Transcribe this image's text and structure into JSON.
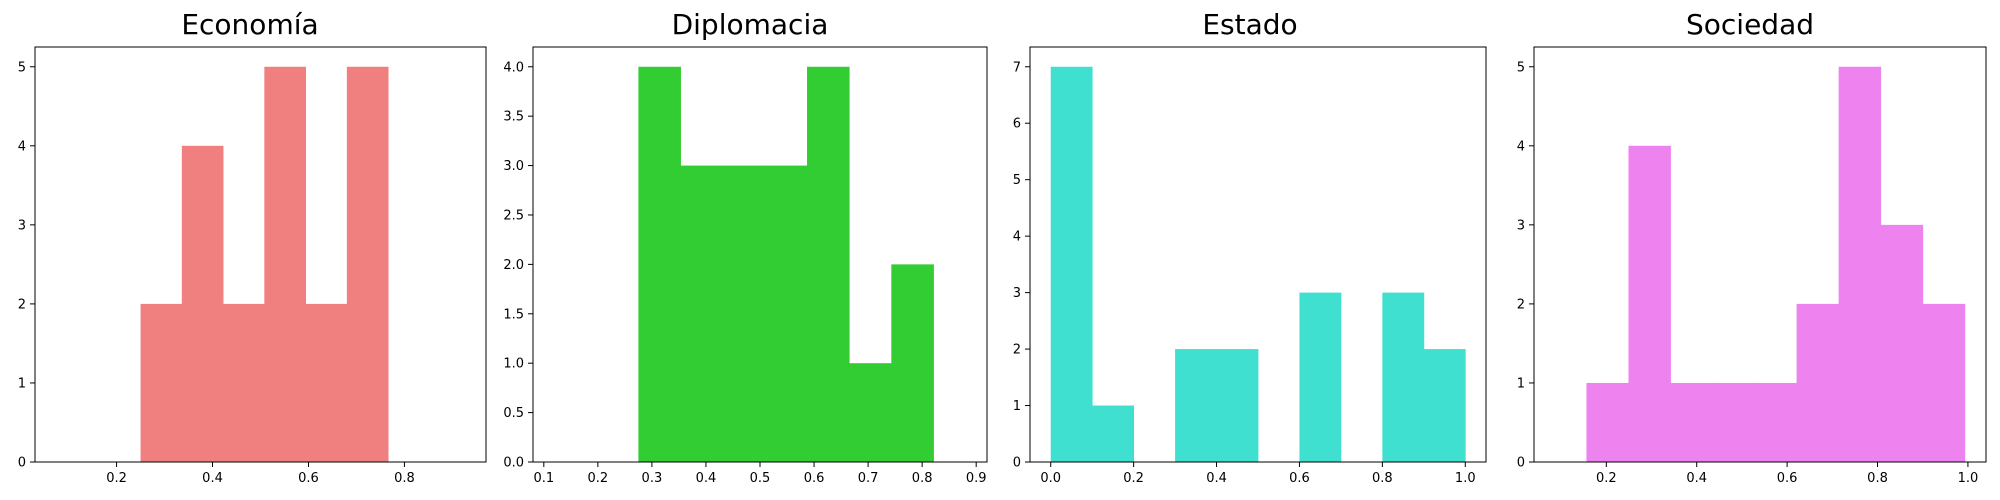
{
  "chart_data": [
    {
      "type": "bar",
      "title": "Economía",
      "color": "#f08080",
      "xlim": [
        0.03,
        0.97
      ],
      "ylim": [
        0,
        5.25
      ],
      "xticks": [
        "0.2",
        "0.4",
        "0.6",
        "0.8"
      ],
      "xtick_values": [
        0.2,
        0.4,
        0.6,
        0.8
      ],
      "yticks": [
        "0",
        "1",
        "2",
        "3",
        "4",
        "5"
      ],
      "ytick_values": [
        0,
        1,
        2,
        3,
        4,
        5
      ],
      "bins": [
        {
          "x0": 0.25,
          "x1": 0.336,
          "count": 2
        },
        {
          "x0": 0.336,
          "x1": 0.422,
          "count": 4
        },
        {
          "x0": 0.422,
          "x1": 0.508,
          "count": 2
        },
        {
          "x0": 0.508,
          "x1": 0.594,
          "count": 5
        },
        {
          "x0": 0.594,
          "x1": 0.68,
          "count": 2
        },
        {
          "x0": 0.68,
          "x1": 0.766,
          "count": 5
        }
      ]
    },
    {
      "type": "bar",
      "title": "Diplomacia",
      "color": "#32cd32",
      "xlim": [
        0.08,
        0.92
      ],
      "ylim": [
        0,
        4.2
      ],
      "xticks": [
        "0.1",
        "0.2",
        "0.3",
        "0.4",
        "0.5",
        "0.6",
        "0.7",
        "0.8",
        "0.9"
      ],
      "xtick_values": [
        0.1,
        0.2,
        0.3,
        0.4,
        0.5,
        0.6,
        0.7,
        0.8,
        0.9
      ],
      "yticks": [
        "0.0",
        "0.5",
        "1.0",
        "1.5",
        "2.0",
        "2.5",
        "3.0",
        "3.5",
        "4.0"
      ],
      "ytick_values": [
        0,
        0.5,
        1,
        1.5,
        2,
        2.5,
        3,
        3.5,
        4
      ],
      "bins": [
        {
          "x0": 0.275,
          "x1": 0.353,
          "count": 4
        },
        {
          "x0": 0.353,
          "x1": 0.431,
          "count": 3
        },
        {
          "x0": 0.431,
          "x1": 0.509,
          "count": 3
        },
        {
          "x0": 0.509,
          "x1": 0.587,
          "count": 3
        },
        {
          "x0": 0.587,
          "x1": 0.665,
          "count": 4
        },
        {
          "x0": 0.665,
          "x1": 0.743,
          "count": 1
        },
        {
          "x0": 0.743,
          "x1": 0.821,
          "count": 2
        }
      ]
    },
    {
      "type": "bar",
      "title": "Estado",
      "color": "#40e0d0",
      "xlim": [
        -0.05,
        1.05
      ],
      "ylim": [
        0,
        7.35
      ],
      "xticks": [
        "0.0",
        "0.2",
        "0.4",
        "0.6",
        "0.8",
        "1.0"
      ],
      "xtick_values": [
        0,
        0.2,
        0.4,
        0.6,
        0.8,
        1.0
      ],
      "yticks": [
        "0",
        "1",
        "2",
        "3",
        "4",
        "5",
        "6",
        "7"
      ],
      "ytick_values": [
        0,
        1,
        2,
        3,
        4,
        5,
        6,
        7
      ],
      "bins": [
        {
          "x0": 0.0,
          "x1": 0.1,
          "count": 7
        },
        {
          "x0": 0.1,
          "x1": 0.2,
          "count": 1
        },
        {
          "x0": 0.2,
          "x1": 0.3,
          "count": 0
        },
        {
          "x0": 0.3,
          "x1": 0.4,
          "count": 2
        },
        {
          "x0": 0.4,
          "x1": 0.5,
          "count": 2
        },
        {
          "x0": 0.5,
          "x1": 0.6,
          "count": 0
        },
        {
          "x0": 0.6,
          "x1": 0.7,
          "count": 3
        },
        {
          "x0": 0.7,
          "x1": 0.8,
          "count": 0
        },
        {
          "x0": 0.8,
          "x1": 0.9,
          "count": 3
        },
        {
          "x0": 0.9,
          "x1": 1.0,
          "count": 2
        }
      ]
    },
    {
      "type": "bar",
      "title": "Sociedad",
      "color": "#ee82ee",
      "xlim": [
        0.04,
        1.04
      ],
      "ylim": [
        0,
        5.25
      ],
      "xticks": [
        "0.2",
        "0.4",
        "0.6",
        "0.8",
        "1.0"
      ],
      "xtick_values": [
        0.2,
        0.4,
        0.6,
        0.8,
        1.0
      ],
      "yticks": [
        "0",
        "1",
        "2",
        "3",
        "4",
        "5"
      ],
      "ytick_values": [
        0,
        1,
        2,
        3,
        4,
        5
      ],
      "bins": [
        {
          "x0": 0.156,
          "x1": 0.249,
          "count": 1
        },
        {
          "x0": 0.249,
          "x1": 0.342,
          "count": 4
        },
        {
          "x0": 0.342,
          "x1": 0.435,
          "count": 1
        },
        {
          "x0": 0.435,
          "x1": 0.528,
          "count": 1
        },
        {
          "x0": 0.528,
          "x1": 0.621,
          "count": 1
        },
        {
          "x0": 0.621,
          "x1": 0.714,
          "count": 2
        },
        {
          "x0": 0.714,
          "x1": 0.807,
          "count": 5
        },
        {
          "x0": 0.807,
          "x1": 0.9,
          "count": 3
        },
        {
          "x0": 0.9,
          "x1": 0.993,
          "count": 2
        }
      ]
    }
  ]
}
